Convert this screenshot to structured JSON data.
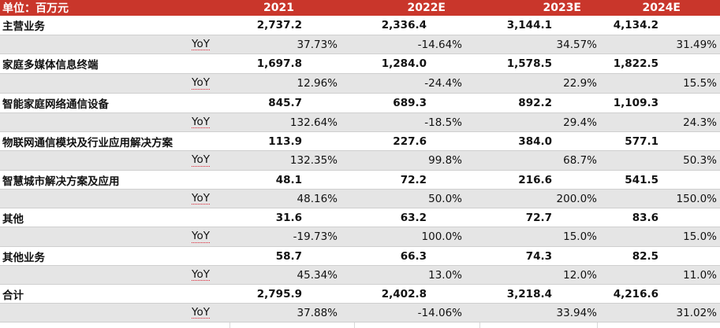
{
  "table": {
    "header": [
      "单位：百万元",
      "2021",
      "2022E",
      "2023E",
      "2024E"
    ],
    "yoy_label": "YoY",
    "rows": [
      {
        "name": "主营业务",
        "values": [
          "2,737.2",
          "2,336.4",
          "3,144.1",
          "4,134.2"
        ],
        "yoy": [
          "37.73%",
          "-14.64%",
          "34.57%",
          "31.49%"
        ]
      },
      {
        "name": "家庭多媒体信息终端",
        "values": [
          "1,697.8",
          "1,284.0",
          "1,578.5",
          "1,822.5"
        ],
        "yoy": [
          "12.96%",
          "-24.4%",
          "22.9%",
          "15.5%"
        ]
      },
      {
        "name": "智能家庭网络通信设备",
        "values": [
          "845.7",
          "689.3",
          "892.2",
          "1,109.3"
        ],
        "yoy": [
          "132.64%",
          "-18.5%",
          "29.4%",
          "24.3%"
        ]
      },
      {
        "name": "物联网通信模块及行业应用解决方案",
        "values": [
          "113.9",
          "227.6",
          "384.0",
          "577.1"
        ],
        "yoy": [
          "132.35%",
          "99.8%",
          "68.7%",
          "50.3%"
        ]
      },
      {
        "name": "智慧城市解决方案及应用",
        "values": [
          "48.1",
          "72.2",
          "216.6",
          "541.5"
        ],
        "yoy": [
          "48.16%",
          "50.0%",
          "200.0%",
          "150.0%"
        ]
      },
      {
        "name": "其他",
        "values": [
          "31.6",
          "63.2",
          "72.7",
          "83.6"
        ],
        "yoy": [
          "-19.73%",
          "100.0%",
          "15.0%",
          "15.0%"
        ]
      },
      {
        "name": "其他业务",
        "values": [
          "58.7",
          "66.3",
          "74.3",
          "82.5"
        ],
        "yoy": [
          "45.34%",
          "13.0%",
          "12.0%",
          "11.0%"
        ]
      },
      {
        "name": "合计",
        "values": [
          "2,795.9",
          "2,402.8",
          "3,218.4",
          "4,216.6"
        ],
        "yoy": [
          "37.88%",
          "-14.06%",
          "33.94%",
          "31.02%"
        ]
      }
    ]
  }
}
